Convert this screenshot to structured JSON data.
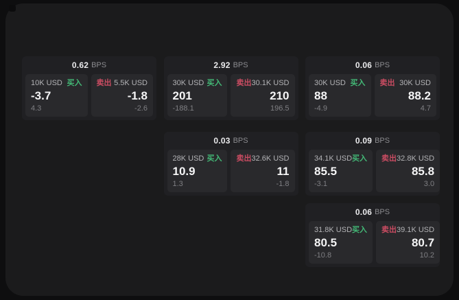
{
  "page": {
    "bps_unit": "BPS",
    "buy_label": "买入",
    "sell_label": "卖出",
    "colors": {
      "outer_bg": "#0e0e0f",
      "window_bg": "#1b1b1c",
      "card_bg": "#202023",
      "panel_bg": "#29292c",
      "buy": "#43b876",
      "sell": "#ca4c62"
    }
  },
  "cards": [
    {
      "bps": "0.62",
      "col": 0,
      "row": 0,
      "buy": {
        "size": "10K USD",
        "price": "-3.7",
        "delta": "4.3"
      },
      "sell": {
        "size": "5.5K USD",
        "price": "-1.8",
        "delta": "-2.6"
      }
    },
    {
      "bps": "2.92",
      "col": 1,
      "row": 0,
      "buy": {
        "size": "30K USD",
        "price": "201",
        "delta": "-188.1"
      },
      "sell": {
        "size": "30.1K USD",
        "price": "210",
        "delta": "196.5"
      }
    },
    {
      "bps": "0.06",
      "col": 2,
      "row": 0,
      "buy": {
        "size": "30K USD",
        "price": "88",
        "delta": "-4.9"
      },
      "sell": {
        "size": "30K USD",
        "price": "88.2",
        "delta": "4.7"
      }
    },
    {
      "bps": "0.03",
      "col": 1,
      "row": 1,
      "buy": {
        "size": "28K USD",
        "price": "10.9",
        "delta": "1.3"
      },
      "sell": {
        "size": "32.6K USD",
        "price": "11",
        "delta": "-1.8"
      }
    },
    {
      "bps": "0.09",
      "col": 2,
      "row": 1,
      "buy": {
        "size": "34.1K USD",
        "price": "85.5",
        "delta": "-3.1"
      },
      "sell": {
        "size": "32.8K USD",
        "price": "85.8",
        "delta": "3.0"
      }
    },
    {
      "bps": "0.06",
      "col": 2,
      "row": 2,
      "buy": {
        "size": "31.8K USD",
        "price": "80.5",
        "delta": "-10.8"
      },
      "sell": {
        "size": "39.1K USD",
        "price": "80.7",
        "delta": "10.2"
      }
    }
  ]
}
